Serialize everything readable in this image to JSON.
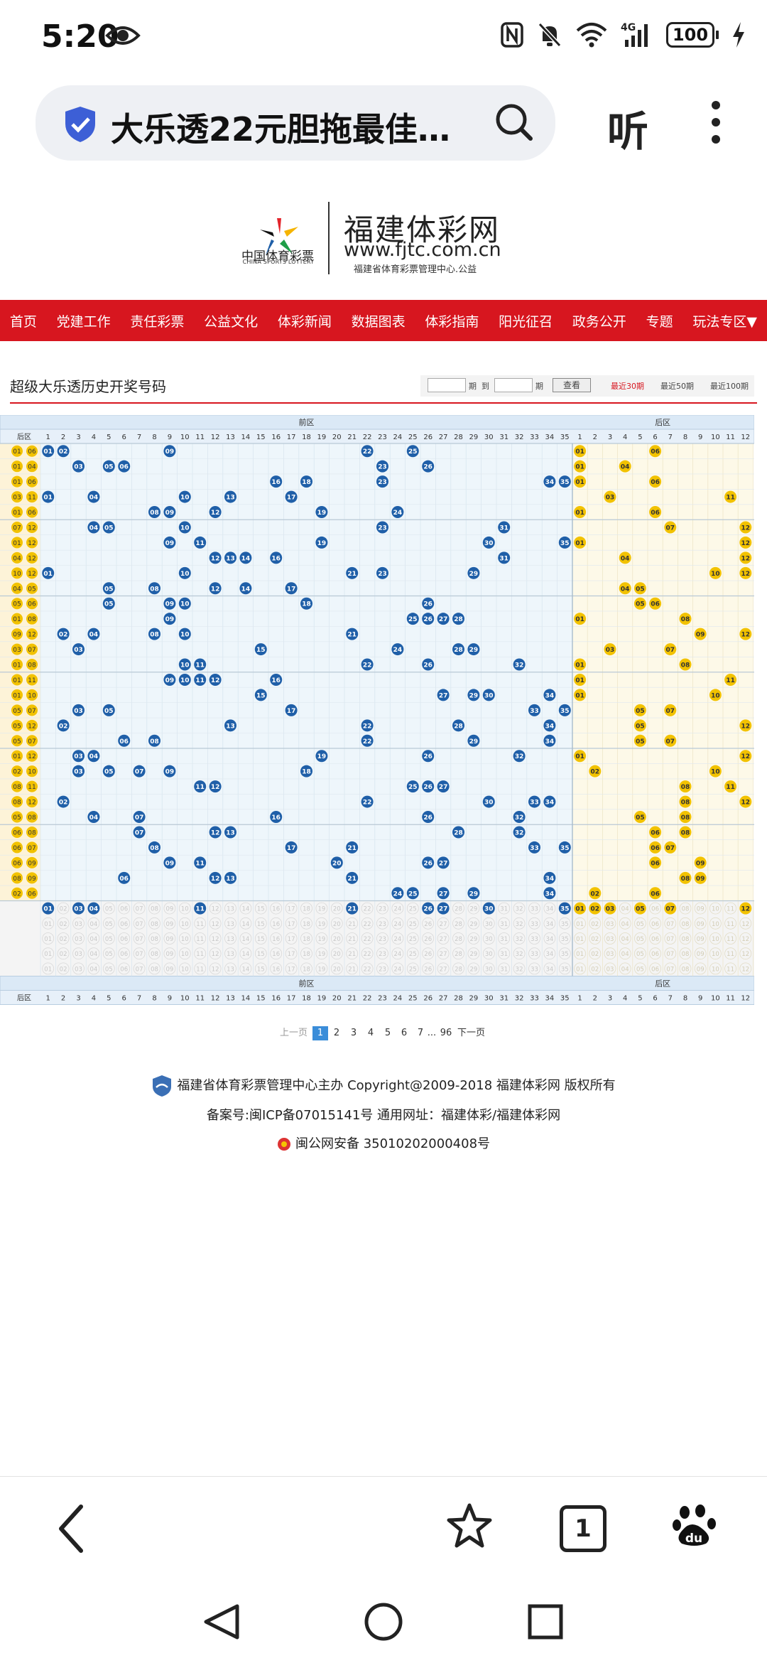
{
  "status_bar": {
    "time": "5:20",
    "battery": "100",
    "network": "4G"
  },
  "browser": {
    "tab_title": "大乐透22元胆拖最佳…",
    "listen_label": "听",
    "tab_count": "1"
  },
  "site": {
    "logo_text_cn": "中国体育彩票",
    "logo_text_en": "CHINA SPORTS LOTTERY",
    "name": "福建体彩网",
    "url": "www.fjtc.com.cn",
    "sub": "福建省体育彩票管理中心.公益"
  },
  "nav": [
    "首页",
    "党建工作",
    "责任彩票",
    "公益文化",
    "体彩新闻",
    "数据图表",
    "体彩指南",
    "阳光征召",
    "政务公开",
    "专题",
    "玩法专区▼"
  ],
  "page": {
    "title": "超级大乐透历史开奖号码",
    "query": {
      "qi1": "期",
      "to": "到",
      "qi2": "期",
      "button": "查看",
      "recent30": "最近30期",
      "recent50": "最近50期",
      "recent100": "最近100期"
    }
  },
  "table": {
    "front_label": "前区",
    "back_label": "后区",
    "back_short": "后区",
    "rows": [
      {
        "f": [
          1,
          2,
          9,
          22,
          25
        ],
        "b": [
          1,
          6
        ]
      },
      {
        "f": [
          3,
          5,
          6,
          23,
          26
        ],
        "b": [
          1,
          4
        ]
      },
      {
        "f": [
          16,
          18,
          23,
          34,
          35
        ],
        "b": [
          1,
          6
        ]
      },
      {
        "f": [
          1,
          4,
          10,
          13,
          17
        ],
        "b": [
          3,
          11
        ]
      },
      {
        "f": [
          8,
          9,
          12,
          19,
          24
        ],
        "b": [
          1,
          6
        ]
      },
      {
        "f": [
          4,
          5,
          10,
          23,
          31
        ],
        "b": [
          7,
          12
        ]
      },
      {
        "f": [
          9,
          11,
          19,
          30,
          35
        ],
        "b": [
          1,
          12
        ]
      },
      {
        "f": [
          12,
          13,
          14,
          16,
          31
        ],
        "b": [
          4,
          12
        ]
      },
      {
        "f": [
          1,
          10,
          21,
          23,
          29
        ],
        "b": [
          10,
          12
        ]
      },
      {
        "f": [
          5,
          8,
          12,
          14,
          17
        ],
        "b": [
          4,
          5
        ]
      },
      {
        "f": [
          5,
          9,
          10,
          18,
          26
        ],
        "b": [
          5,
          6
        ]
      },
      {
        "f": [
          9,
          25,
          26,
          27,
          28
        ],
        "b": [
          1,
          8
        ]
      },
      {
        "f": [
          2,
          4,
          8,
          10,
          21
        ],
        "b": [
          9,
          12
        ]
      },
      {
        "f": [
          3,
          15,
          24,
          28,
          29
        ],
        "b": [
          3,
          7
        ]
      },
      {
        "f": [
          10,
          11,
          22,
          26,
          32
        ],
        "b": [
          1,
          8
        ]
      },
      {
        "f": [
          9,
          10,
          11,
          12,
          16
        ],
        "b": [
          1,
          11
        ]
      },
      {
        "f": [
          15,
          27,
          29,
          30,
          34
        ],
        "b": [
          1,
          10
        ]
      },
      {
        "f": [
          3,
          5,
          17,
          33,
          35
        ],
        "b": [
          5,
          7
        ]
      },
      {
        "f": [
          2,
          13,
          22,
          28,
          34
        ],
        "b": [
          5,
          12
        ]
      },
      {
        "f": [
          6,
          8,
          22,
          29,
          34
        ],
        "b": [
          5,
          7
        ]
      },
      {
        "f": [
          3,
          4,
          19,
          26,
          32
        ],
        "b": [
          1,
          12
        ]
      },
      {
        "f": [
          3,
          5,
          7,
          9,
          18
        ],
        "b": [
          2,
          10
        ]
      },
      {
        "f": [
          11,
          12,
          25,
          26,
          27
        ],
        "b": [
          8,
          11
        ]
      },
      {
        "f": [
          2,
          22,
          30,
          33,
          34
        ],
        "b": [
          8,
          12
        ]
      },
      {
        "f": [
          4,
          7,
          16,
          26,
          32
        ],
        "b": [
          5,
          8
        ]
      },
      {
        "f": [
          7,
          12,
          13,
          28,
          32
        ],
        "b": [
          6,
          8
        ]
      },
      {
        "f": [
          8,
          17,
          21,
          33,
          35
        ],
        "b": [
          6,
          7
        ]
      },
      {
        "f": [
          9,
          11,
          20,
          26,
          27
        ],
        "b": [
          6,
          9
        ]
      },
      {
        "f": [
          6,
          12,
          13,
          21,
          34
        ],
        "b": [
          8,
          9
        ]
      },
      {
        "f": [
          24,
          25,
          27,
          29,
          34
        ],
        "b": [
          2,
          6
        ]
      }
    ],
    "stat_front": [
      1,
      3,
      4,
      11,
      21,
      26,
      27,
      30,
      35
    ],
    "stat_back": [
      1,
      2,
      3,
      5,
      7,
      12
    ]
  },
  "pager": {
    "prev": "上一页",
    "pages": [
      "1",
      "2",
      "3",
      "4",
      "5",
      "6",
      "7",
      "...",
      "96"
    ],
    "next": "下一页",
    "current": "1"
  },
  "footer": {
    "line1": "福建省体育彩票管理中心主办 Copyright@2009-2018 福建体彩网 版权所有",
    "line2": "备案号:闽ICP备07015141号    通用网址：福建体彩/福建体彩网",
    "line3": "闽公网安备 35010202000408号"
  },
  "colors": {
    "nav_red": "#d7161f",
    "front_ball": "#1f5fa8",
    "back_ball": "#f2c200",
    "front_bg": "#eef6fb",
    "back_bg": "#fdf9e8"
  }
}
